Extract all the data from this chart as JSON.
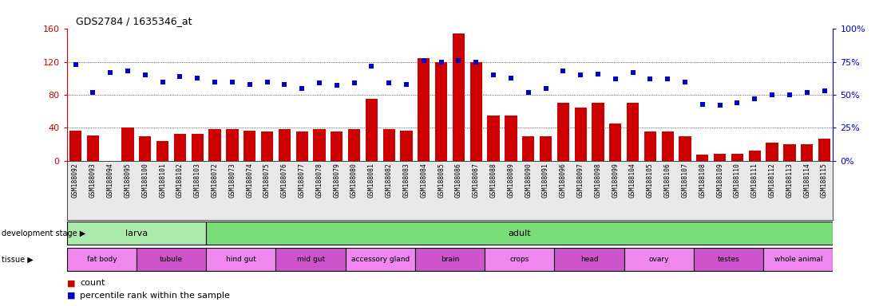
{
  "title": "GDS2784 / 1635346_at",
  "samples": [
    "GSM188092",
    "GSM188093",
    "GSM188094",
    "GSM188095",
    "GSM188100",
    "GSM188101",
    "GSM188102",
    "GSM188103",
    "GSM188072",
    "GSM188073",
    "GSM188074",
    "GSM188075",
    "GSM188076",
    "GSM188077",
    "GSM188078",
    "GSM188079",
    "GSM188080",
    "GSM188081",
    "GSM188082",
    "GSM188083",
    "GSM188084",
    "GSM188085",
    "GSM188086",
    "GSM188087",
    "GSM188088",
    "GSM188089",
    "GSM188090",
    "GSM188091",
    "GSM188096",
    "GSM188097",
    "GSM188098",
    "GSM188099",
    "GSM188104",
    "GSM188105",
    "GSM188106",
    "GSM188107",
    "GSM188108",
    "GSM188109",
    "GSM188110",
    "GSM188111",
    "GSM188112",
    "GSM188113",
    "GSM188114",
    "GSM188115"
  ],
  "count": [
    36,
    31,
    0,
    40,
    30,
    24,
    33,
    33,
    38,
    38,
    36,
    35,
    38,
    35,
    38,
    35,
    38,
    75,
    38,
    36,
    125,
    120,
    155,
    120,
    55,
    55,
    30,
    30,
    70,
    65,
    70,
    45,
    70,
    35,
    35,
    30,
    7,
    8,
    8,
    12,
    22,
    20,
    20,
    27
  ],
  "percentile": [
    73,
    52,
    67,
    68,
    65,
    60,
    64,
    63,
    60,
    60,
    58,
    60,
    58,
    55,
    59,
    57,
    59,
    72,
    59,
    58,
    76,
    75,
    76,
    75,
    65,
    63,
    52,
    55,
    68,
    65,
    66,
    62,
    67,
    62,
    62,
    60,
    43,
    42,
    44,
    47,
    50,
    50,
    52,
    53
  ],
  "left_ylim": [
    0,
    160
  ],
  "left_yticks": [
    0,
    40,
    80,
    120,
    160
  ],
  "right_ylim": [
    0,
    100
  ],
  "right_yticks": [
    0,
    25,
    50,
    75,
    100
  ],
  "bar_color": "#cc0000",
  "dot_color": "#0000cc",
  "dev_stage_groups": [
    {
      "label": "larva",
      "start": 0,
      "end": 8,
      "color": "#aaeaaa"
    },
    {
      "label": "adult",
      "start": 8,
      "end": 44,
      "color": "#77dd77"
    }
  ],
  "tissue_groups": [
    {
      "label": "fat body",
      "start": 0,
      "end": 4,
      "color": "#ee88ee"
    },
    {
      "label": "tubule",
      "start": 4,
      "end": 8,
      "color": "#cc55cc"
    },
    {
      "label": "hind gut",
      "start": 8,
      "end": 12,
      "color": "#ee88ee"
    },
    {
      "label": "mid gut",
      "start": 12,
      "end": 16,
      "color": "#cc55cc"
    },
    {
      "label": "accessory gland",
      "start": 16,
      "end": 20,
      "color": "#ee88ee"
    },
    {
      "label": "brain",
      "start": 20,
      "end": 24,
      "color": "#cc55cc"
    },
    {
      "label": "crops",
      "start": 24,
      "end": 28,
      "color": "#ee88ee"
    },
    {
      "label": "head",
      "start": 28,
      "end": 32,
      "color": "#cc55cc"
    },
    {
      "label": "ovary",
      "start": 32,
      "end": 36,
      "color": "#ee88ee"
    },
    {
      "label": "testes",
      "start": 36,
      "end": 40,
      "color": "#cc55cc"
    },
    {
      "label": "whole animal",
      "start": 40,
      "end": 44,
      "color": "#ee88ee"
    }
  ],
  "bg_color": "#ffffff",
  "left_axis_color": "#cc0000",
  "right_axis_color": "#0000cc"
}
